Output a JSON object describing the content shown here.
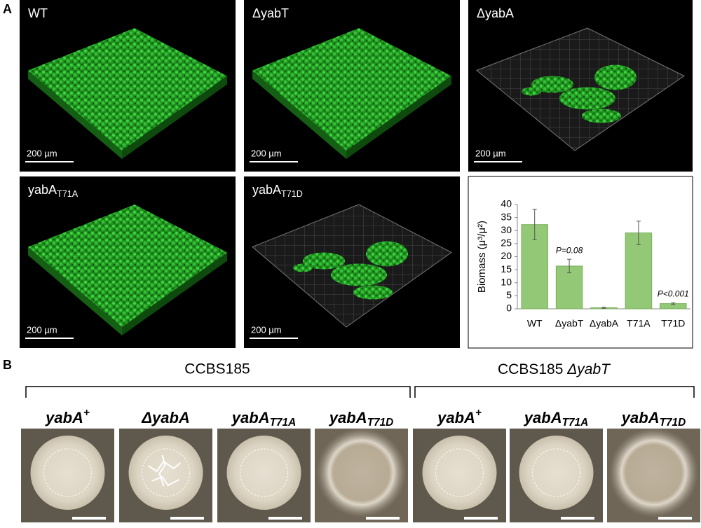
{
  "panel_a": {
    "label": "A",
    "images": [
      {
        "title": "WT",
        "scale_bar": "200 µm"
      },
      {
        "title": "ΔyabT",
        "scale_bar": "200 µm"
      },
      {
        "title": "ΔyabA",
        "scale_bar": "200 µm"
      },
      {
        "title": {
          "base": "yabA",
          "sub": "T71A"
        },
        "scale_bar": "200 µm"
      },
      {
        "title": {
          "base": "yabA",
          "sub": "T71D"
        },
        "scale_bar": "200 µm"
      }
    ]
  },
  "chart_data": {
    "type": "bar",
    "y_label": "Biomass (μ³/μ²)",
    "categories": [
      "WT",
      "ΔyabT",
      "ΔyabA",
      "T71A",
      "T71D"
    ],
    "values": [
      32.3,
      16.4,
      0.4,
      29.1,
      2.0
    ],
    "errors": [
      5.8,
      2.6,
      0.2,
      4.5,
      0.3
    ],
    "annotations": [
      "P=0.08",
      "P<0.001"
    ],
    "color": "#93c876",
    "ylim": [
      0,
      40
    ],
    "yticks": [
      0,
      5,
      10,
      15,
      20,
      25,
      30,
      35,
      40
    ]
  },
  "panel_b": {
    "label": "B",
    "groups": [
      "CCBS185",
      {
        "base": "CCBS185 ",
        "italic": "ΔyabT"
      }
    ],
    "colonies": [
      {
        "base": "yabA",
        "sup": "+"
      },
      "ΔyabA",
      {
        "base": "yabA",
        "sub": "T71A"
      },
      {
        "base": "yabA",
        "sub": "T71D"
      },
      {
        "base": "yabA",
        "sup": "+"
      },
      {
        "base": "yabA",
        "sub": "T71A"
      },
      {
        "base": "yabA",
        "sub": "T71D"
      }
    ]
  }
}
